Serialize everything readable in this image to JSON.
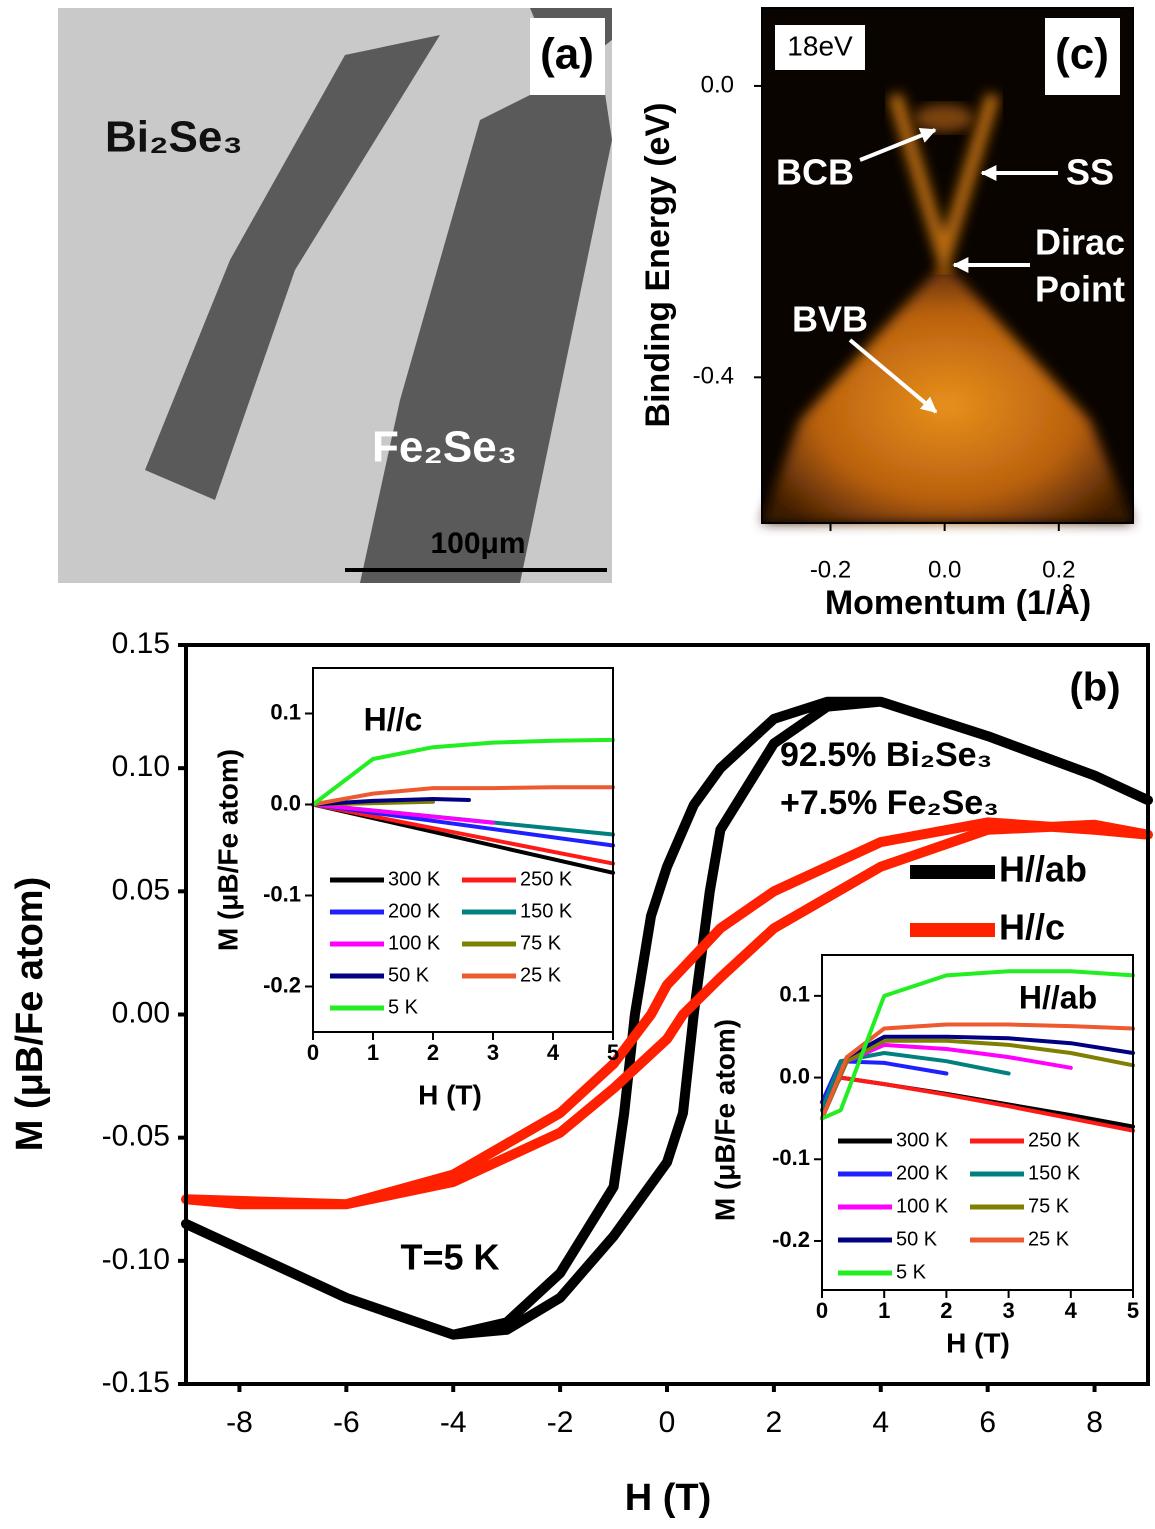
{
  "panel_a": {
    "label": "(a)",
    "annotations": [
      "Bi₂Se₃",
      "Fe₂Se₃"
    ],
    "scale_bar": "100μm"
  },
  "chart_data": [
    {
      "type": "image",
      "label": "(c)",
      "photon_energy": "18eV",
      "xlabel": "Momentum (1/Å)",
      "ylabel": "Binding Energy (eV)",
      "xlim": [
        -0.32,
        0.33
      ],
      "ylim": [
        -0.6,
        0.107
      ],
      "xticks": [
        -0.2,
        {
          "value": 0,
          "label": "0.0"
        },
        0.2
      ],
      "yticks": [
        {
          "value": 0,
          "label": "0.0"
        },
        -0.4
      ],
      "annotations": [
        "BCB",
        "SS",
        "Dirac",
        "Point",
        "BVB"
      ]
    },
    {
      "type": "line",
      "xlabel": "H (T)",
      "ylabel": "M (μB/Fe atom)",
      "xlim": [
        -9,
        9
      ],
      "ylim": [
        -0.15,
        0.15
      ],
      "xticks": [
        -8,
        -6,
        -4,
        -2,
        0,
        2,
        4,
        6,
        8
      ],
      "yticks": [
        0.15,
        {
          "value": 0.1,
          "label": "0.10"
        },
        0.05,
        {
          "value": 0,
          "label": "0.00"
        },
        -0.05,
        {
          "value": -0.1,
          "label": "-0.10"
        },
        -0.15
      ],
      "annotations": [
        "(b)",
        "92.5% Bi₂Se₃",
        "+7.5% Fe₂Se₃",
        "T=5 K"
      ],
      "series": [
        {
          "name": "H//ab",
          "color": "#000000",
          "x": [
            -9,
            -6,
            -4,
            -3,
            -2,
            -1,
            0,
            0.3,
            0.5,
            0.8,
            1,
            2,
            3,
            4,
            6,
            8,
            9,
            8,
            6,
            4,
            3,
            2,
            1,
            0.5,
            0,
            -0.3,
            -0.6,
            -0.8,
            -1,
            -2,
            -3,
            -4,
            -6,
            -8,
            -9
          ],
          "values": [
            -0.085,
            -0.115,
            -0.13,
            -0.128,
            -0.115,
            -0.09,
            -0.06,
            -0.04,
            0,
            0.05,
            0.075,
            0.11,
            0.125,
            0.127,
            0.113,
            0.097,
            0.087,
            0.097,
            0.113,
            0.127,
            0.127,
            0.12,
            0.1,
            0.085,
            0.06,
            0.04,
            0,
            -0.04,
            -0.07,
            -0.105,
            -0.125,
            -0.13,
            -0.115,
            -0.095,
            -0.085
          ]
        },
        {
          "name": "H//c",
          "color": "#ff2000",
          "x": [
            -9,
            -6,
            -4,
            -2,
            -1,
            0,
            0.3,
            1,
            2,
            4,
            6,
            8,
            9,
            8,
            6,
            4,
            2,
            1,
            0,
            -0.3,
            -1,
            -2,
            -4,
            -6,
            -8,
            -9
          ],
          "values": [
            -0.075,
            -0.077,
            -0.068,
            -0.048,
            -0.03,
            -0.01,
            0,
            0.015,
            0.035,
            0.06,
            0.075,
            0.077,
            0.073,
            0.075,
            0.078,
            0.07,
            0.05,
            0.035,
            0.012,
            0,
            -0.02,
            -0.04,
            -0.065,
            -0.077,
            -0.077,
            -0.075
          ]
        }
      ]
    },
    {
      "type": "line",
      "title": "H//c",
      "xlabel": "H (T)",
      "ylabel": "M (μB/Fe atom)",
      "xlim": [
        0,
        5
      ],
      "ylim": [
        -0.25,
        0.15
      ],
      "xticks": [
        0,
        1,
        2,
        3,
        4,
        5
      ],
      "yticks": [
        0.1,
        {
          "value": 0,
          "label": "0.0"
        },
        -0.1,
        -0.2
      ],
      "series": [
        {
          "name": "300 K",
          "color": "#000000",
          "x": [
            0,
            5
          ],
          "values": [
            0,
            -0.075
          ]
        },
        {
          "name": "250 K",
          "color": "#ff1a1a",
          "x": [
            0,
            5
          ],
          "values": [
            0,
            -0.065
          ]
        },
        {
          "name": "200 K",
          "color": "#2020ff",
          "x": [
            0,
            5
          ],
          "values": [
            0,
            -0.045
          ]
        },
        {
          "name": "150 K",
          "color": "#00807f",
          "x": [
            0,
            5
          ],
          "values": [
            0,
            -0.033
          ]
        },
        {
          "name": "100 K",
          "color": "#ff00ff",
          "x": [
            0,
            3
          ],
          "values": [
            0,
            -0.02
          ]
        },
        {
          "name": "75 K",
          "color": "#808000",
          "x": [
            0,
            2
          ],
          "values": [
            0,
            0.003
          ]
        },
        {
          "name": "50 K",
          "color": "#000080",
          "x": [
            0,
            1,
            2,
            2.6
          ],
          "values": [
            0,
            0.004,
            0.006,
            0.005
          ]
        },
        {
          "name": "25 K",
          "color": "#ee5a30",
          "x": [
            0,
            1,
            2,
            3,
            4,
            5
          ],
          "values": [
            0,
            0.012,
            0.018,
            0.018,
            0.019,
            0.019
          ]
        },
        {
          "name": "5 K",
          "color": "#22ee22",
          "x": [
            0,
            1,
            2,
            3,
            4,
            5
          ],
          "values": [
            0,
            0.05,
            0.063,
            0.068,
            0.07,
            0.071
          ]
        }
      ]
    },
    {
      "type": "line",
      "title": "H//ab",
      "xlabel": "H (T)",
      "ylabel": "M (μB/Fe atom)",
      "xlim": [
        0,
        5
      ],
      "ylim": [
        -0.26,
        0.15
      ],
      "xticks": [
        0,
        1,
        2,
        3,
        4,
        5
      ],
      "yticks": [
        0.1,
        {
          "value": 0,
          "label": "0.0"
        },
        -0.1,
        -0.2
      ],
      "series": [
        {
          "name": "300 K",
          "color": "#000000",
          "x": [
            0,
            0.3,
            1,
            2,
            3,
            4,
            5
          ],
          "values": [
            -0.03,
            0,
            -0.008,
            -0.02,
            -0.033,
            -0.046,
            -0.06
          ]
        },
        {
          "name": "250 K",
          "color": "#ff1a1a",
          "x": [
            0,
            0.3,
            1,
            2,
            3,
            4,
            5
          ],
          "values": [
            -0.03,
            0,
            -0.008,
            -0.021,
            -0.035,
            -0.05,
            -0.065
          ]
        },
        {
          "name": "200 K",
          "color": "#2020ff",
          "x": [
            0,
            0.3,
            1,
            2
          ],
          "values": [
            -0.03,
            0.02,
            0.018,
            0.005
          ]
        },
        {
          "name": "150 K",
          "color": "#00807f",
          "x": [
            0,
            0.3,
            1,
            2,
            3
          ],
          "values": [
            -0.04,
            0.02,
            0.03,
            0.02,
            0.005
          ]
        },
        {
          "name": "100 K",
          "color": "#ff00ff",
          "x": [
            0,
            0.4,
            1,
            2,
            3,
            4
          ],
          "values": [
            -0.05,
            0.02,
            0.04,
            0.035,
            0.025,
            0.012
          ]
        },
        {
          "name": "75 K",
          "color": "#808000",
          "x": [
            0,
            0.4,
            1,
            2,
            3,
            4,
            5
          ],
          "values": [
            -0.05,
            0.02,
            0.045,
            0.045,
            0.04,
            0.03,
            0.015
          ]
        },
        {
          "name": "50 K",
          "color": "#000080",
          "x": [
            0,
            0.4,
            1,
            2,
            3,
            4,
            5
          ],
          "values": [
            -0.05,
            0.025,
            0.05,
            0.05,
            0.048,
            0.042,
            0.03
          ]
        },
        {
          "name": "25 K",
          "color": "#ee5a30",
          "x": [
            0,
            0.4,
            1,
            2,
            3,
            4,
            5
          ],
          "values": [
            -0.05,
            0.025,
            0.06,
            0.065,
            0.065,
            0.063,
            0.06
          ]
        },
        {
          "name": "5 K",
          "color": "#22ee22",
          "x": [
            0,
            0.3,
            0.5,
            1,
            2,
            3,
            4,
            5
          ],
          "values": [
            -0.05,
            -0.04,
            0,
            0.1,
            0.125,
            0.13,
            0.13,
            0.125
          ]
        }
      ]
    }
  ]
}
